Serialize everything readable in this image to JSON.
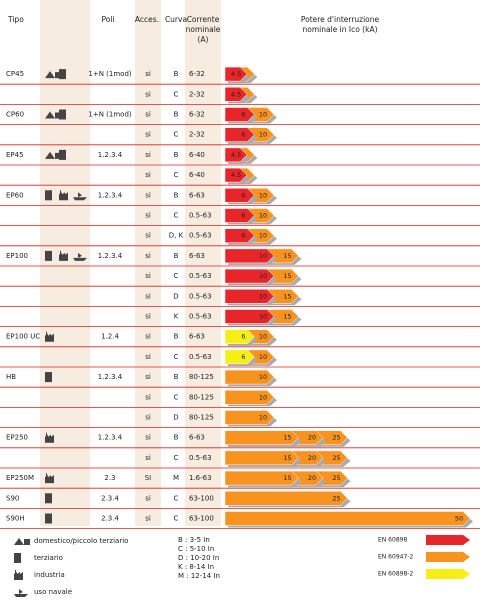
{
  "header": {
    "tipo": "Tipo",
    "poli": "Poli",
    "acces": "Acces.",
    "curva": "Curva",
    "corrente": [
      "Corrente",
      "nominale",
      "(A)"
    ],
    "potere": [
      "Potere d'interruzione",
      "nominale in Ico (kA)"
    ]
  },
  "rows": [
    {
      "tipo": "CP45",
      "poli": "1+N (1mod)",
      "acces": "si",
      "curva": "B",
      "corrente": "6-32",
      "bars": [
        {
          "standard": "EN 60898",
          "value": 4.5
        },
        {
          "standard": "EN 60947-2",
          "value": 6
        }
      ]
    },
    {
      "tipo": null,
      "poli": null,
      "acces": "si",
      "curva": "C",
      "corrente": "2-32",
      "bars": [
        {
          "standard": "EN 60898",
          "value": 4.5
        },
        {
          "standard": "EN 60947-2",
          "value": 6
        }
      ]
    },
    {
      "tipo": "CP60",
      "poli": "1+N (1mod)",
      "acces": "si",
      "curva": "B",
      "corrente": "6-32",
      "bars": [
        {
          "standard": "EN 60898",
          "value": 6
        },
        {
          "standard": "EN 60947-2",
          "value": 10
        }
      ]
    },
    {
      "tipo": null,
      "poli": null,
      "acces": "si",
      "curva": "C",
      "corrente": "2-32",
      "bars": [
        {
          "standard": "EN 60898",
          "value": 6
        },
        {
          "standard": "EN 60947-2",
          "value": 10
        }
      ]
    },
    {
      "tipo": "EP45",
      "poli": "1.2.3.4",
      "acces": "si",
      "curva": "B",
      "corrente": "6-40",
      "bars": [
        {
          "standard": "EN 60898",
          "value": 4.5
        },
        {
          "standard": "EN 60947-2",
          "value": 6
        }
      ]
    },
    {
      "tipo": null,
      "poli": null,
      "acces": "si",
      "curva": "C",
      "corrente": "6-40",
      "bars": [
        {
          "standard": "EN 60898",
          "value": 4.5
        },
        {
          "standard": "EN 60947-2",
          "value": 6
        }
      ]
    },
    {
      "tipo": "EP60",
      "poli": "1.2.3.4",
      "acces": "si",
      "curva": "B",
      "corrente": "6-63",
      "bars": [
        {
          "standard": "EN 60898",
          "value": 6
        },
        {
          "standard": "EN 60947-2",
          "value": 10
        }
      ]
    },
    {
      "tipo": null,
      "poli": null,
      "acces": "si",
      "curva": "C",
      "corrente": "0.5-63",
      "bars": [
        {
          "standard": "EN 60898",
          "value": 6
        },
        {
          "standard": "EN 60947-2",
          "value": 10
        }
      ]
    },
    {
      "tipo": null,
      "poli": null,
      "acces": "si",
      "curva": "D, K",
      "corrente": "0.5-63",
      "bars": [
        {
          "standard": "EN 60898",
          "value": 6
        },
        {
          "standard": "EN 60947-2",
          "value": 10
        }
      ]
    },
    {
      "tipo": "EP100",
      "poli": "1.2.3.4",
      "acces": "si",
      "curva": "B",
      "corrente": "6-63",
      "bars": [
        {
          "standard": "EN 60898",
          "value": 10
        },
        {
          "standard": "EN 60947-2",
          "value": 15
        }
      ]
    },
    {
      "tipo": null,
      "poli": null,
      "acces": "si",
      "curva": "C",
      "corrente": "0.5-63",
      "bars": [
        {
          "standard": "EN 60898",
          "value": 10
        },
        {
          "standard": "EN 60947-2",
          "value": 15
        }
      ]
    },
    {
      "tipo": null,
      "poli": null,
      "acces": "si",
      "curva": "D",
      "corrente": "0.5-63",
      "bars": [
        {
          "standard": "EN 60898",
          "value": 10
        },
        {
          "standard": "EN 60947-2",
          "value": 15
        }
      ]
    },
    {
      "tipo": null,
      "poli": null,
      "acces": "si",
      "curva": "K",
      "corrente": "0.5-63",
      "bars": [
        {
          "standard": "EN 60898",
          "value": 10
        },
        {
          "standard": "EN 60947-2",
          "value": 15
        }
      ]
    },
    {
      "tipo": "EP100 UC",
      "poli": "1.2.4",
      "acces": "si",
      "curva": "B",
      "corrente": "6-63",
      "bars": [
        {
          "standard": "EN 60898-2",
          "value": 6
        },
        {
          "standard": "EN 60947-2",
          "value": 10
        }
      ]
    },
    {
      "tipo": null,
      "poli": null,
      "acces": "si",
      "curva": "C",
      "corrente": "0.5-63",
      "bars": [
        {
          "standard": "EN 60898-2",
          "value": 6
        },
        {
          "standard": "EN 60947-2",
          "value": 10
        }
      ]
    },
    {
      "tipo": "HB",
      "poli": "1.2.3.4",
      "acces": "si",
      "curva": "B",
      "corrente": "80-125",
      "bars": [
        {
          "standard": "EN 60947-2",
          "value": 10
        }
      ]
    },
    {
      "tipo": null,
      "poli": null,
      "acces": "si",
      "curva": "C",
      "corrente": "80-125",
      "bars": [
        {
          "standard": "EN 60947-2",
          "value": 10
        }
      ]
    },
    {
      "tipo": null,
      "poli": null,
      "acces": "si",
      "curva": "D",
      "corrente": "80-125",
      "bars": [
        {
          "standard": "EN 60947-2",
          "value": 10
        }
      ]
    },
    {
      "tipo": "EP250",
      "poli": "1.2.3.4",
      "acces": "si",
      "curva": "B",
      "corrente": "6-63",
      "bars": [
        {
          "standard": "EN 60947-2",
          "value": 15
        },
        {
          "standard": "EN 60947-2",
          "value": 20
        },
        {
          "standard": "EN 60947-2",
          "value": 25
        }
      ]
    },
    {
      "tipo": null,
      "poli": null,
      "acces": "si",
      "curva": "C",
      "corrente": "0.5-63",
      "bars": [
        {
          "standard": "EN 60947-2",
          "value": 15
        },
        {
          "standard": "EN 60947-2",
          "value": 20
        },
        {
          "standard": "EN 60947-2",
          "value": 25
        }
      ]
    },
    {
      "tipo": "EP250M",
      "poli": "2.3",
      "acces": "SI",
      "curva": "M",
      "corrente": "1.6-63",
      "bars": [
        {
          "standard": "EN 60947-2",
          "value": 15
        },
        {
          "standard": "EN 60947-2",
          "value": 20
        },
        {
          "standard": "EN 60947-2",
          "value": 25
        }
      ]
    },
    {
      "tipo": "S90",
      "poli": "2.3.4",
      "acces": "si",
      "curva": "C",
      "corrente": "63-100",
      "bars": [
        {
          "standard": "EN 60947-2",
          "value": 25
        }
      ]
    },
    {
      "tipo": "S90H",
      "poli": "2.3.4",
      "acces": "si",
      "curva": "C",
      "corrente": "63-100",
      "bars": [
        {
          "standard": "EN 60947-2",
          "value": 50
        }
      ]
    }
  ],
  "legend": {
    "uses": [
      "domestico/piccolo terziario",
      "terziario",
      "industria",
      "uso navale"
    ],
    "curves": [
      "B : 3-5 In",
      "C : 5-10 In",
      "D : 10-20 In",
      "K : 8-14 In",
      "M : 12-14 In"
    ],
    "standards": [
      {
        "name": "EN 60898",
        "color": "#e8262a"
      },
      {
        "name": "EN 60947-2",
        "color": "#f7931e"
      },
      {
        "name": "EN 60898-2",
        "color": "#f5ef14"
      }
    ]
  }
}
